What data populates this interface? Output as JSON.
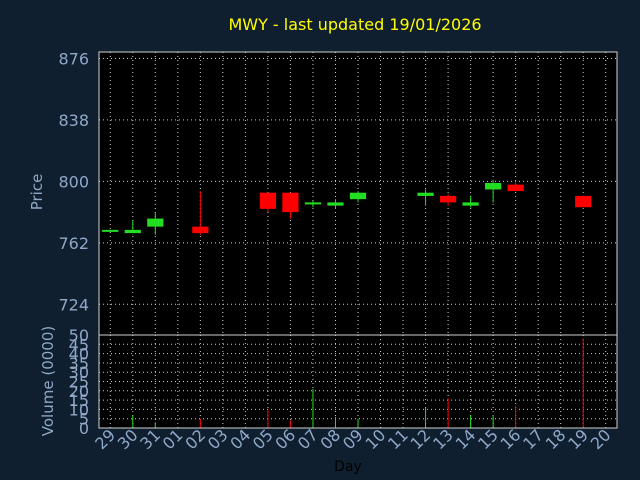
{
  "chart_data": [
    {
      "type": "candlestick",
      "title": "MWY - last updated 19/01/2026",
      "ylabel": "Price",
      "ylim": [
        705,
        880
      ],
      "yticks": [
        "876",
        "838",
        "800",
        "762",
        "724"
      ],
      "grid": true,
      "colors": {
        "up": "#22dd22",
        "down": "#ff0000",
        "title": "#ffff00",
        "axis_text": "#8fa8c8",
        "background": "#0f1f2f",
        "plot_background": "#000000"
      },
      "candles": [
        {
          "day": "29",
          "open": 769,
          "close": 770,
          "high": 770,
          "low": 769
        },
        {
          "day": "30",
          "open": 768,
          "close": 770,
          "high": 776,
          "low": 768
        },
        {
          "day": "31",
          "open": 772,
          "close": 777,
          "high": 781,
          "low": 767
        },
        {
          "day": "02",
          "open": 772,
          "close": 768,
          "high": 794,
          "low": 767
        },
        {
          "day": "05",
          "open": 793,
          "close": 783,
          "high": 793,
          "low": 781
        },
        {
          "day": "06",
          "open": 793,
          "close": 781,
          "high": 793,
          "low": 777
        },
        {
          "day": "07",
          "open": 786,
          "close": 787,
          "high": 788,
          "low": 784
        },
        {
          "day": "08",
          "open": 785,
          "close": 787,
          "high": 789,
          "low": 783
        },
        {
          "day": "09",
          "open": 789,
          "close": 793,
          "high": 794,
          "low": 787
        },
        {
          "day": "12",
          "open": 791,
          "close": 793,
          "high": 795,
          "low": 785
        },
        {
          "day": "13",
          "open": 791,
          "close": 787,
          "high": 792,
          "low": 785
        },
        {
          "day": "14",
          "open": 785,
          "close": 787,
          "high": 791,
          "low": 784
        },
        {
          "day": "15",
          "open": 795,
          "close": 799,
          "high": 801,
          "low": 787
        },
        {
          "day": "16",
          "open": 798,
          "close": 794,
          "high": 800,
          "low": 794
        },
        {
          "day": "19",
          "open": 791,
          "close": 784,
          "high": 791,
          "low": 784
        }
      ]
    },
    {
      "type": "bar",
      "ylabel": "Volume (0000)",
      "xlabel": "Day",
      "ylim": [
        0,
        50
      ],
      "yticks": [
        "50",
        "45",
        "40",
        "35",
        "30",
        "25",
        "20",
        "15",
        "10",
        "5",
        "0"
      ],
      "grid": true,
      "categories": [
        "29",
        "30",
        "31",
        "01",
        "02",
        "03",
        "04",
        "05",
        "06",
        "07",
        "08",
        "09",
        "10",
        "11",
        "12",
        "13",
        "14",
        "15",
        "16",
        "17",
        "18",
        "19",
        "20"
      ],
      "volumes": [
        {
          "day": "30",
          "value": 7,
          "direction": "up"
        },
        {
          "day": "31",
          "value": 3,
          "direction": "up"
        },
        {
          "day": "02",
          "value": 5,
          "direction": "down"
        },
        {
          "day": "05",
          "value": 10,
          "direction": "down"
        },
        {
          "day": "06",
          "value": 4,
          "direction": "down"
        },
        {
          "day": "07",
          "value": 21,
          "direction": "up"
        },
        {
          "day": "08",
          "value": 6,
          "direction": "up"
        },
        {
          "day": "09",
          "value": 5,
          "direction": "up"
        },
        {
          "day": "12",
          "value": 11,
          "direction": "up"
        },
        {
          "day": "13",
          "value": 16,
          "direction": "down"
        },
        {
          "day": "14",
          "value": 7,
          "direction": "up"
        },
        {
          "day": "15",
          "value": 7,
          "direction": "up"
        },
        {
          "day": "16",
          "value": 12,
          "direction": "down"
        },
        {
          "day": "19",
          "value": 48,
          "direction": "down"
        }
      ]
    }
  ]
}
